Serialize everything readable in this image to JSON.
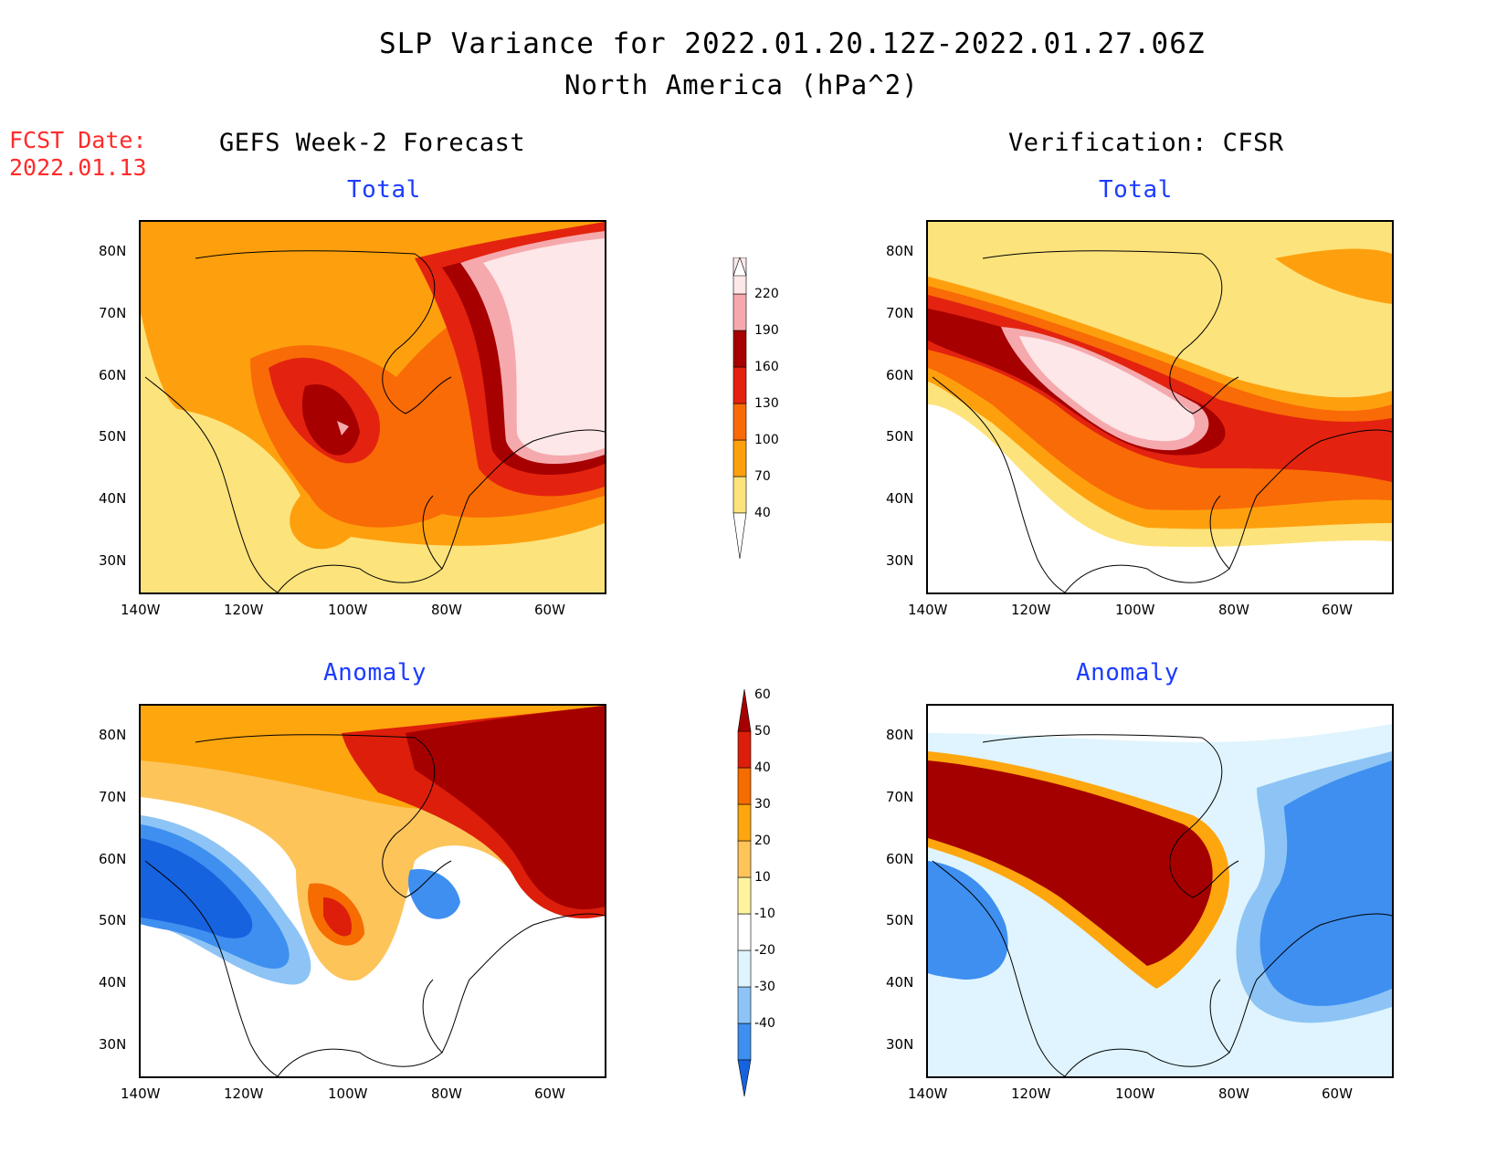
{
  "header": {
    "title": "SLP Variance for 2022.01.20.12Z-2022.01.27.06Z",
    "subtitle": "North America (hPa^2)",
    "fcst_label": "FCST Date:",
    "fcst_date": "2022.01.13"
  },
  "columns": {
    "left": "GEFS Week-2 Forecast",
    "right": "Verification: CFSR"
  },
  "panels": [
    {
      "title": "Total"
    },
    {
      "title": "Total"
    },
    {
      "title": "Anomaly"
    },
    {
      "title": "Anomaly"
    }
  ],
  "axes": {
    "lat_labels": [
      "80N",
      "70N",
      "60N",
      "50N",
      "40N",
      "30N"
    ],
    "lon_labels": [
      "140W",
      "120W",
      "100W",
      "80W",
      "60W"
    ],
    "lat_range": [
      25,
      85
    ],
    "lon_range": [
      -140,
      -50
    ]
  },
  "colorbars": {
    "total": {
      "levels": [
        "40",
        "70",
        "100",
        "130",
        "160",
        "190",
        "220"
      ],
      "colors": [
        "#ffffff",
        "#fde37c",
        "#fea00e",
        "#f96b06",
        "#e3230f",
        "#a60000",
        "#f5a9ad",
        "#fde7e8"
      ]
    },
    "anomaly": {
      "levels": [
        "-40",
        "-30",
        "-20",
        "-10",
        "10",
        "20",
        "30",
        "40",
        "50",
        "60"
      ],
      "colors": [
        "#1663e0",
        "#3e8ff0",
        "#8dc4f5",
        "#dff4fe",
        "#ffffff",
        "#fff3a0",
        "#fdc45a",
        "#fea60e",
        "#f66c00",
        "#dc1e0a",
        "#a50000"
      ]
    }
  }
}
